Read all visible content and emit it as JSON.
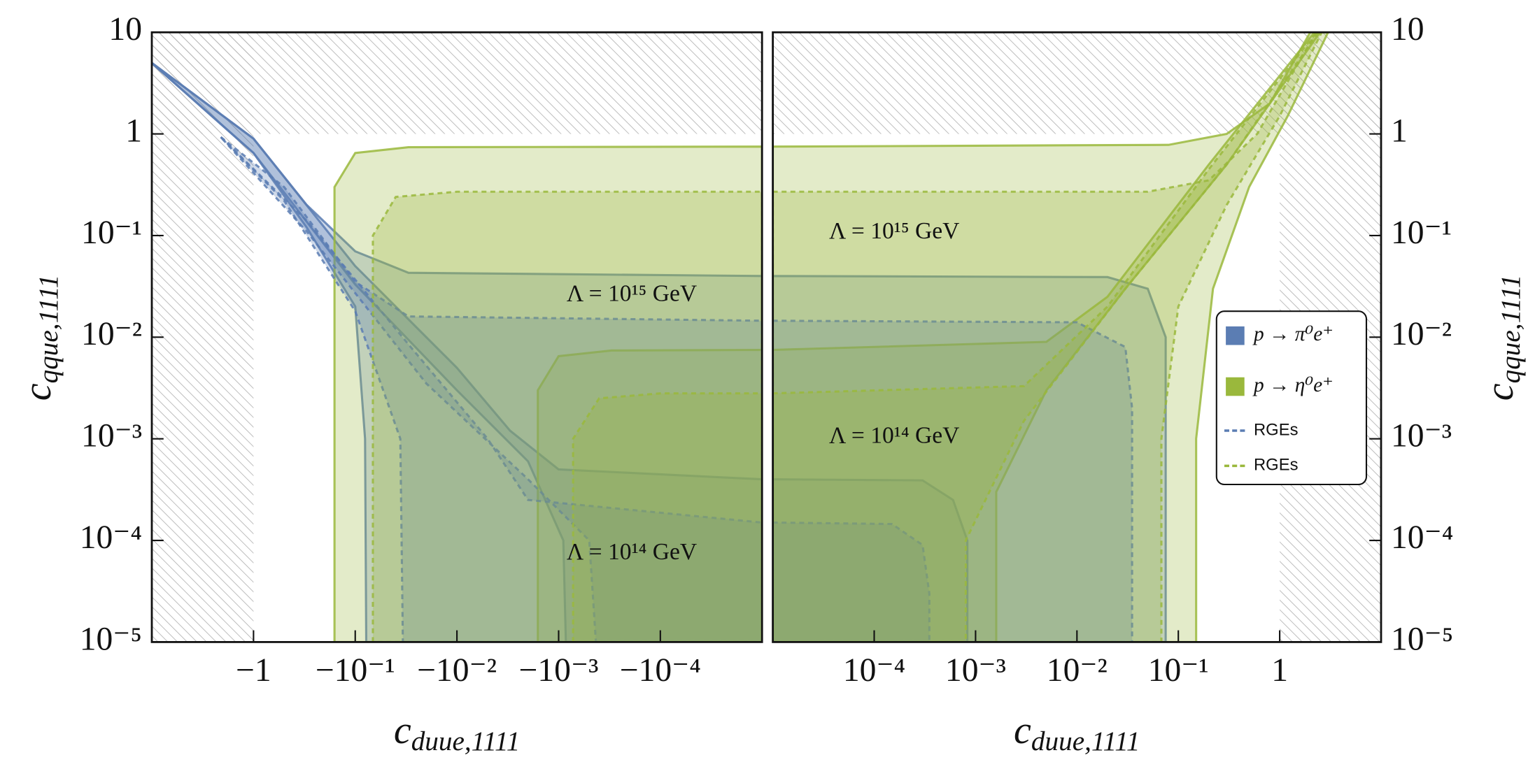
{
  "chart_data": {
    "type": "region",
    "ylim": [
      1e-05,
      10
    ],
    "yticks": [
      10,
      1,
      {
        "value": 0.1,
        "label": "10⁻¹"
      },
      {
        "value": 0.01,
        "label": "10⁻²"
      },
      {
        "value": 0.001,
        "label": "10⁻³"
      },
      {
        "value": 0.0001,
        "label": "10⁻⁴"
      },
      {
        "value": 1e-05,
        "label": "10⁻⁵"
      }
    ],
    "y_label": {
      "text": "c",
      "sub": "qque,1111"
    },
    "log_scale": true,
    "bound": 1,
    "legend": "right",
    "panels": [
      {
        "xlim": [
          -10,
          -1e-05
        ],
        "xticks": [
          {
            "value": -1,
            "label": "−1"
          },
          {
            "value": -0.1,
            "label": "−10⁻¹"
          },
          {
            "value": -0.01,
            "label": "−10⁻²"
          },
          {
            "value": -0.001,
            "label": "−10⁻³"
          },
          {
            "value": -0.0001,
            "label": "−10⁻⁴"
          }
        ],
        "x_label": {
          "text": "c",
          "sub": "duue,1111"
        }
      },
      {
        "xlim": [
          1e-05,
          10
        ],
        "xticks": [
          {
            "value": 0.0001,
            "label": "10⁻⁴"
          },
          {
            "value": 0.001,
            "label": "10⁻³"
          },
          {
            "value": 0.01,
            "label": "10⁻²"
          },
          {
            "value": 0.1,
            "label": "10⁻¹"
          },
          1
        ],
        "x_label": {
          "text": "c",
          "sub": "duue,1111"
        }
      }
    ],
    "annotations": [
      "Λ = 10¹⁵ GeV",
      "Λ = 10¹⁴ GeV",
      "Λ = 10¹⁵ GeV",
      "Λ = 10¹⁴ GeV"
    ],
    "series": [
      {
        "name": "p → π⁰e⁺",
        "color": "#5b7db3",
        "style": "solid",
        "regions": [
          {
            "panel": 0,
            "x": [
              -10,
              -1,
              -0.3,
              -0.1,
              -0.03,
              -1e-05,
              -1e-05,
              -0.078,
              -0.08,
              -0.1,
              -0.3,
              -1
            ],
            "y": [
              5,
              0.9,
              0.2,
              0.07,
              0.043,
              0.04,
              1e-05,
              1e-05,
              0.001,
              0.02,
              0.12,
              0.65
            ]
          },
          {
            "panel": 0,
            "x": [
              -10,
              -1,
              -0.1,
              -0.01,
              -0.003,
              -0.001,
              -1e-05,
              -1e-05,
              -0.00085,
              -0.0009,
              -0.002,
              -0.01,
              -0.1,
              -1
            ],
            "y": [
              5,
              0.9,
              0.05,
              0.005,
              0.0012,
              0.0005,
              0.0004,
              1e-05,
              1e-05,
              0.0001,
              0.0006,
              0.003,
              0.033,
              0.65
            ]
          },
          {
            "panel": 1,
            "x": [
              1e-05,
              0.02,
              0.05,
              0.075,
              0.075,
              1e-05
            ],
            "y": [
              0.04,
              0.039,
              0.03,
              0.01,
              1e-05,
              1e-05
            ]
          },
          {
            "panel": 1,
            "x": [
              1e-05,
              0.0003,
              0.0006,
              0.00083,
              0.00083,
              1e-05
            ],
            "y": [
              0.0004,
              0.00039,
              0.00025,
              0.0001,
              1e-05,
              1e-05
            ]
          }
        ]
      },
      {
        "name": "p → η⁰e⁺",
        "color": "#9ab83c",
        "style": "solid",
        "regions": [
          {
            "panel": 0,
            "x": [
              -0.16,
              -0.16,
              -0.1,
              -0.03,
              -1e-05,
              -1e-05
            ],
            "y": [
              1e-05,
              0.3,
              0.65,
              0.74,
              0.75,
              1e-05
            ]
          },
          {
            "panel": 0,
            "x": [
              -0.0016,
              -0.0016,
              -0.001,
              -0.0003,
              -1e-05,
              -1e-05
            ],
            "y": [
              1e-05,
              0.003,
              0.0065,
              0.0074,
              0.0075,
              1e-05
            ]
          },
          {
            "panel": 1,
            "x": [
              1e-05,
              0.08,
              0.3,
              0.8,
              2,
              3,
              1.2,
              0.5,
              0.22,
              0.15,
              0.15,
              1e-05
            ],
            "y": [
              0.75,
              0.78,
              1,
              2,
              10,
              10,
              1.5,
              0.3,
              0.03,
              0.001,
              1e-05,
              1e-05
            ]
          },
          {
            "panel": 1,
            "x": [
              1e-05,
              0.005,
              0.02,
              0.2,
              2.2,
              2.5,
              0.3,
              0.03,
              0.005,
              0.0016,
              0.0016,
              1e-05
            ],
            "y": [
              0.0075,
              0.009,
              0.025,
              0.5,
              10,
              10,
              0.5,
              0.03,
              0.003,
              0.0003,
              1e-05,
              1e-05
            ]
          }
        ]
      },
      {
        "name": "RGEs",
        "color": "#5b7db3",
        "style": "dashed",
        "regions": [
          {
            "panel": 0,
            "x": [
              -2.1,
              -0.5,
              -0.1,
              -0.03,
              -1e-05,
              -1e-05,
              -0.034,
              -0.036,
              -0.1,
              -0.5
            ],
            "y": [
              0.93,
              0.3,
              0.035,
              0.016,
              0.0145,
              1e-05,
              1e-05,
              0.001,
              0.018,
              0.22
            ]
          },
          {
            "panel": 0,
            "x": [
              -2.1,
              -0.3,
              -0.03,
              -0.005,
              -0.002,
              -1e-05,
              -1e-05,
              -0.00043,
              -0.0005,
              -0.002,
              -0.02,
              -0.3
            ],
            "y": [
              0.93,
              0.14,
              0.0085,
              0.001,
              0.00025,
              0.00015,
              1e-05,
              1e-05,
              0.0001,
              0.0004,
              0.0035,
              0.11
            ]
          },
          {
            "panel": 1,
            "x": [
              1e-05,
              0.01,
              0.03,
              0.035,
              0.035,
              1e-05
            ],
            "y": [
              0.0145,
              0.014,
              0.008,
              0.002,
              1e-05,
              1e-05
            ]
          },
          {
            "panel": 1,
            "x": [
              1e-05,
              0.00015,
              0.0003,
              0.00035,
              0.00035,
              1e-05
            ],
            "y": [
              0.00015,
              0.000145,
              9e-05,
              3e-05,
              1e-05,
              1e-05
            ]
          }
        ]
      },
      {
        "name": "RGEs",
        "color": "#9ab83c",
        "style": "dashed",
        "regions": [
          {
            "panel": 0,
            "x": [
              -0.067,
              -0.067,
              -0.04,
              -0.01,
              -1e-05,
              -1e-05
            ],
            "y": [
              1e-05,
              0.1,
              0.24,
              0.27,
              0.27,
              1e-05
            ]
          },
          {
            "panel": 0,
            "x": [
              -0.00072,
              -0.00072,
              -0.0004,
              -0.0001,
              -1e-05,
              -1e-05
            ],
            "y": [
              1e-05,
              0.001,
              0.0025,
              0.0028,
              0.0028,
              1e-05
            ]
          },
          {
            "panel": 1,
            "x": [
              1e-05,
              0.05,
              0.2,
              0.6,
              2.3,
              2.6,
              1,
              0.3,
              0.1,
              0.068,
              0.068,
              1e-05
            ],
            "y": [
              0.27,
              0.27,
              0.35,
              1,
              10,
              10,
              1.5,
              0.2,
              0.02,
              0.001,
              1e-05,
              1e-05
            ]
          },
          {
            "panel": 1,
            "x": [
              1e-05,
              0.003,
              0.02,
              0.2,
              2.3,
              2.4,
              0.3,
              0.03,
              0.003,
              0.0008,
              0.0008,
              1e-05
            ],
            "y": [
              0.0028,
              0.0033,
              0.02,
              0.45,
              10,
              10,
              0.5,
              0.03,
              0.0015,
              0.0001,
              1e-05,
              1e-05
            ]
          }
        ]
      }
    ]
  }
}
